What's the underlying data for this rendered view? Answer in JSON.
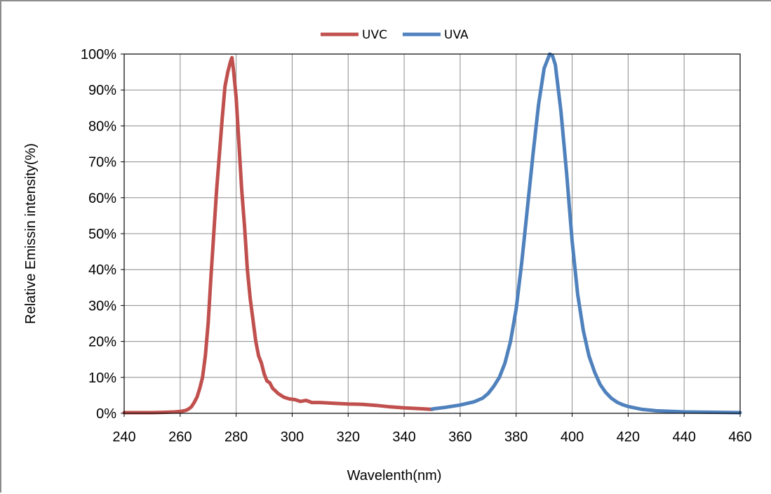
{
  "chart_data": {
    "type": "line",
    "xlabel": "Wavelenth(nm)",
    "ylabel": "Relative Emissin intensity(%)",
    "xlim": [
      240,
      460
    ],
    "ylim": [
      0,
      100
    ],
    "x_ticks": [
      240,
      260,
      280,
      300,
      320,
      340,
      360,
      380,
      400,
      420,
      440,
      460
    ],
    "x_tick_labels": [
      "240",
      "260",
      "280",
      "300",
      "320",
      "340",
      "360",
      "380",
      "400",
      "420",
      "440",
      "460"
    ],
    "y_ticks": [
      0,
      10,
      20,
      30,
      40,
      50,
      60,
      70,
      80,
      90,
      100
    ],
    "y_tick_labels": [
      "0%",
      "10%",
      "20%",
      "30%",
      "40%",
      "50%",
      "60%",
      "70%",
      "80%",
      "90%",
      "100%"
    ],
    "grid": true,
    "legend": "top-center",
    "series": [
      {
        "name": "UVC",
        "color": "#c0504d",
        "points": [
          [
            240,
            0.2
          ],
          [
            250,
            0.2
          ],
          [
            255,
            0.3
          ],
          [
            258,
            0.4
          ],
          [
            260,
            0.5
          ],
          [
            262,
            0.8
          ],
          [
            263,
            1.2
          ],
          [
            264,
            1.8
          ],
          [
            265,
            3
          ],
          [
            266,
            4.5
          ],
          [
            267,
            7
          ],
          [
            268,
            10
          ],
          [
            269,
            16
          ],
          [
            270,
            25
          ],
          [
            271,
            38
          ],
          [
            272,
            50
          ],
          [
            273,
            62
          ],
          [
            274,
            72
          ],
          [
            275,
            82
          ],
          [
            276,
            91
          ],
          [
            277,
            95
          ],
          [
            278,
            98
          ],
          [
            278.5,
            99
          ],
          [
            279,
            96
          ],
          [
            280,
            88
          ],
          [
            281,
            75
          ],
          [
            282,
            62
          ],
          [
            283,
            52
          ],
          [
            284,
            40
          ],
          [
            285,
            32
          ],
          [
            286,
            26
          ],
          [
            287,
            20
          ],
          [
            288,
            16
          ],
          [
            289,
            14
          ],
          [
            290,
            11
          ],
          [
            291,
            9
          ],
          [
            292,
            8.5
          ],
          [
            293,
            7
          ],
          [
            295,
            5.5
          ],
          [
            297,
            4.5
          ],
          [
            299,
            4
          ],
          [
            301,
            3.8
          ],
          [
            303,
            3.3
          ],
          [
            305,
            3.6
          ],
          [
            307,
            3
          ],
          [
            310,
            3
          ],
          [
            315,
            2.8
          ],
          [
            320,
            2.6
          ],
          [
            325,
            2.5
          ],
          [
            330,
            2.2
          ],
          [
            335,
            1.8
          ],
          [
            340,
            1.5
          ],
          [
            345,
            1.3
          ],
          [
            350,
            1.1
          ]
        ]
      },
      {
        "name": "UVA",
        "color": "#4f81bd",
        "points": [
          [
            350,
            1.2
          ],
          [
            355,
            1.7
          ],
          [
            360,
            2.3
          ],
          [
            365,
            3.2
          ],
          [
            368,
            4.2
          ],
          [
            370,
            5.5
          ],
          [
            372,
            7.5
          ],
          [
            374,
            10
          ],
          [
            376,
            14
          ],
          [
            378,
            20
          ],
          [
            380,
            29
          ],
          [
            382,
            42
          ],
          [
            384,
            57
          ],
          [
            386,
            72
          ],
          [
            388,
            86
          ],
          [
            390,
            96
          ],
          [
            392,
            100
          ],
          [
            393,
            99.5
          ],
          [
            394,
            97
          ],
          [
            396,
            84
          ],
          [
            398,
            67
          ],
          [
            400,
            48
          ],
          [
            402,
            33
          ],
          [
            404,
            23
          ],
          [
            406,
            16
          ],
          [
            408,
            11.5
          ],
          [
            410,
            8
          ],
          [
            412,
            5.8
          ],
          [
            414,
            4.2
          ],
          [
            416,
            3.1
          ],
          [
            418,
            2.4
          ],
          [
            420,
            1.9
          ],
          [
            425,
            1.1
          ],
          [
            430,
            0.7
          ],
          [
            440,
            0.4
          ],
          [
            450,
            0.3
          ],
          [
            460,
            0.2
          ]
        ]
      }
    ]
  }
}
